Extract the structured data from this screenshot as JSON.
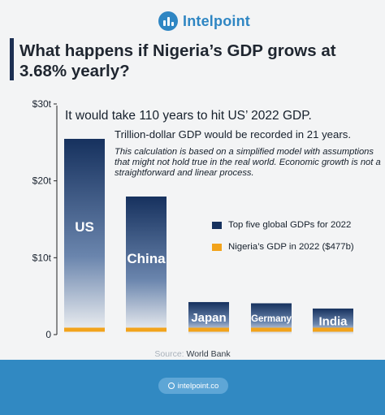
{
  "brand": {
    "name": "Intelpoint",
    "color": "#2f86c3"
  },
  "title": "What happens if Nigeria’s GDP grows at 3.68% yearly?",
  "notes": {
    "headline": "It would take 110 years to hit US’ 2022 GDP.",
    "subline": "Trillion-dollar GDP would be recorded in 21 years.",
    "disclaimer": "This calculation is based on a simplified model with assumptions that might not hold true in the real world. Economic growth is not a straightforward and linear process."
  },
  "source": {
    "prefix": "Source:",
    "name": "World Bank"
  },
  "footer": {
    "url": "intelpoint.co",
    "icon": "globe-icon",
    "color": "#3189c2"
  },
  "chart_data": {
    "type": "bar",
    "categories": [
      "US",
      "China",
      "Japan",
      "Germany",
      "India"
    ],
    "series": [
      {
        "name": "Top five global GDPs for 2022",
        "values": [
          25.46,
          17.96,
          4.23,
          4.07,
          3.39
        ],
        "color": "#16315e"
      },
      {
        "name": "Nigeria’s GDP in 2022 ($477b)",
        "values": [
          0.477,
          0.477,
          0.477,
          0.477,
          0.477
        ],
        "color": "#f2a31b"
      }
    ],
    "ylim": [
      0,
      30
    ],
    "yticks": [
      0,
      10,
      20,
      30
    ],
    "ytick_labels": [
      "0",
      "$10t",
      "$20t",
      "$30t"
    ],
    "legend": "right"
  }
}
